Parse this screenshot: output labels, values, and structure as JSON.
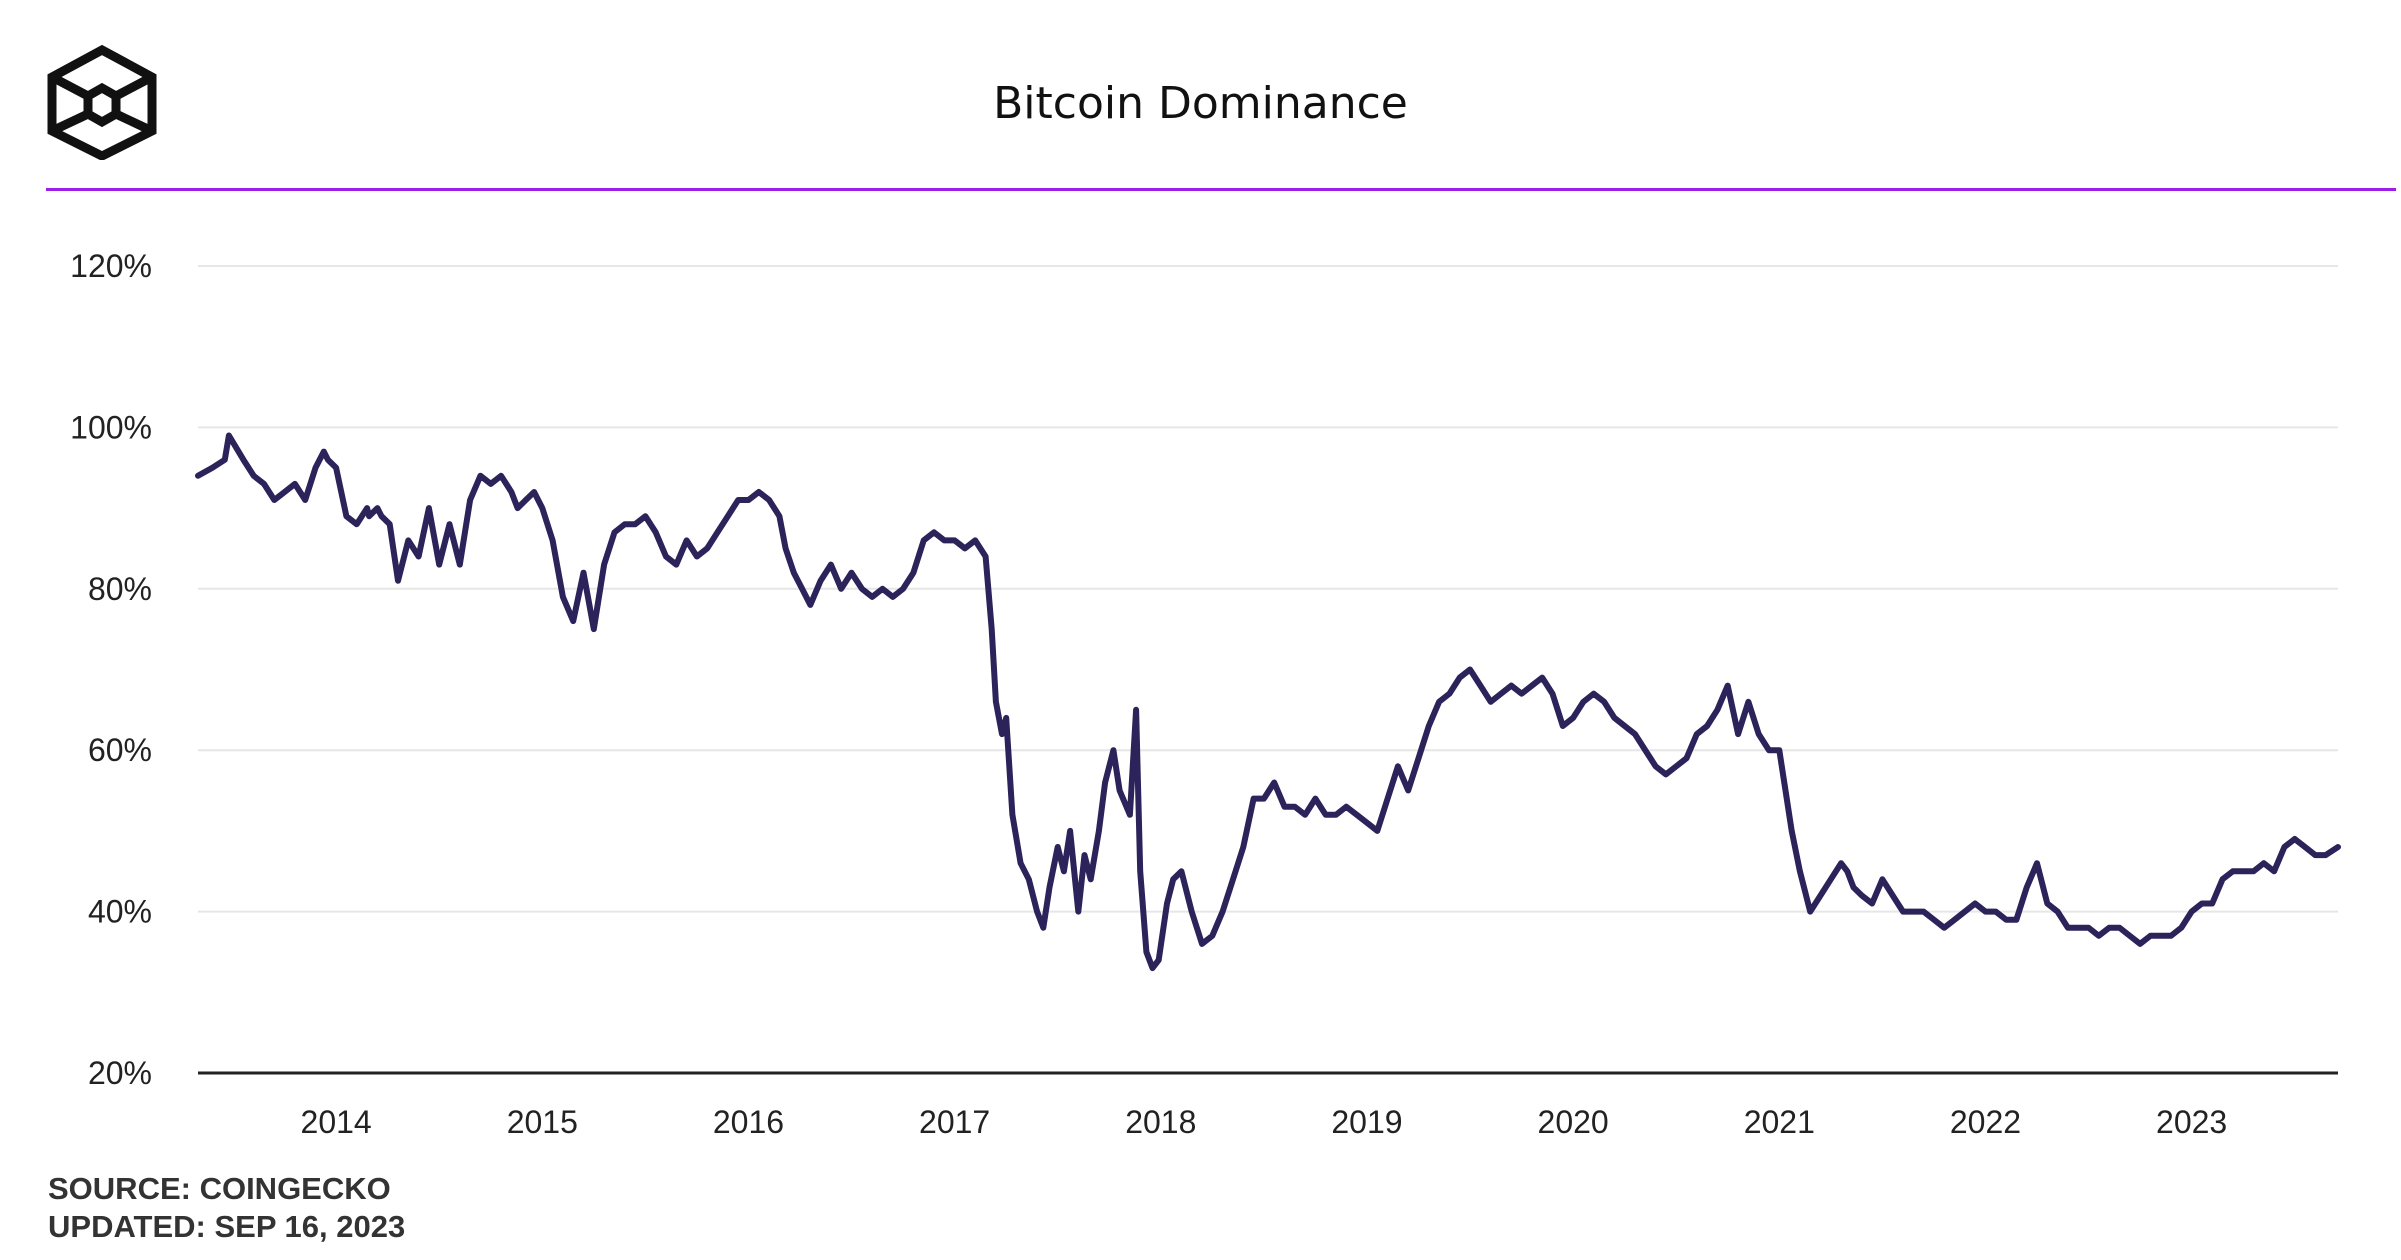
{
  "header": {
    "title": "Bitcoin Dominance",
    "accent_color": "#9b1fe8",
    "logo_icon": "hexagon-cube-logo-icon"
  },
  "footer": {
    "source": "SOURCE: COINGECKO",
    "updated": "UPDATED: SEP 16, 2023"
  },
  "chart_data": {
    "type": "line",
    "title": "Bitcoin Dominance",
    "xlabel": "",
    "ylabel": "",
    "xlim": [
      2013.33,
      2023.71
    ],
    "ylim": [
      20,
      120
    ],
    "y_ticks": [
      20,
      40,
      60,
      80,
      100,
      120
    ],
    "y_tick_labels": [
      "20%",
      "40%",
      "60%",
      "80%",
      "100%",
      "120%"
    ],
    "x_ticks": [
      2014,
      2015,
      2016,
      2017,
      2018,
      2019,
      2020,
      2021,
      2022,
      2023
    ],
    "x_tick_labels": [
      "2014",
      "2015",
      "2016",
      "2017",
      "2018",
      "2019",
      "2020",
      "2021",
      "2022",
      "2023"
    ],
    "grid": true,
    "legend": "none",
    "line_color": "#2b2359",
    "series": [
      {
        "name": "",
        "x": [
          2013.33,
          2013.4,
          2013.46,
          2013.48,
          2013.55,
          2013.6,
          2013.65,
          2013.7,
          2013.75,
          2013.8,
          2013.85,
          2013.9,
          2013.94,
          2013.96,
          2014.0,
          2014.05,
          2014.1,
          2014.15,
          2014.16,
          2014.2,
          2014.22,
          2014.26,
          2014.3,
          2014.35,
          2014.4,
          2014.45,
          2014.5,
          2014.55,
          2014.6,
          2014.65,
          2014.7,
          2014.75,
          2014.8,
          2014.85,
          2014.88,
          2014.92,
          2014.96,
          2015.0,
          2015.05,
          2015.1,
          2015.15,
          2015.2,
          2015.25,
          2015.3,
          2015.35,
          2015.4,
          2015.45,
          2015.5,
          2015.55,
          2015.6,
          2015.65,
          2015.7,
          2015.75,
          2015.8,
          2015.85,
          2015.9,
          2015.95,
          2016.0,
          2016.05,
          2016.1,
          2016.15,
          2016.18,
          2016.22,
          2016.26,
          2016.3,
          2016.35,
          2016.4,
          2016.45,
          2016.5,
          2016.55,
          2016.6,
          2016.65,
          2016.7,
          2016.75,
          2016.8,
          2016.85,
          2016.9,
          2016.95,
          2017.0,
          2017.05,
          2017.1,
          2017.15,
          2017.18,
          2017.2,
          2017.23,
          2017.25,
          2017.28,
          2017.32,
          2017.36,
          2017.4,
          2017.43,
          2017.46,
          2017.5,
          2017.53,
          2017.56,
          2017.6,
          2017.63,
          2017.66,
          2017.7,
          2017.73,
          2017.77,
          2017.8,
          2017.85,
          2017.88,
          2017.9,
          2017.93,
          2017.96,
          2017.99,
          2018.03,
          2018.06,
          2018.1,
          2018.15,
          2018.2,
          2018.25,
          2018.3,
          2018.35,
          2018.4,
          2018.45,
          2018.5,
          2018.55,
          2018.6,
          2018.65,
          2018.7,
          2018.75,
          2018.8,
          2018.85,
          2018.9,
          2018.95,
          2019.0,
          2019.05,
          2019.1,
          2019.15,
          2019.2,
          2019.25,
          2019.3,
          2019.35,
          2019.4,
          2019.45,
          2019.5,
          2019.55,
          2019.6,
          2019.65,
          2019.7,
          2019.75,
          2019.8,
          2019.85,
          2019.9,
          2019.95,
          2020.0,
          2020.05,
          2020.1,
          2020.15,
          2020.2,
          2020.25,
          2020.3,
          2020.35,
          2020.4,
          2020.45,
          2020.5,
          2020.55,
          2020.6,
          2020.65,
          2020.7,
          2020.75,
          2020.8,
          2020.85,
          2020.9,
          2020.95,
          2021.0,
          2021.03,
          2021.06,
          2021.1,
          2021.15,
          2021.2,
          2021.25,
          2021.3,
          2021.33,
          2021.36,
          2021.4,
          2021.45,
          2021.5,
          2021.55,
          2021.6,
          2021.65,
          2021.7,
          2021.75,
          2021.8,
          2021.85,
          2021.9,
          2021.95,
          2022.0,
          2022.05,
          2022.1,
          2022.15,
          2022.2,
          2022.25,
          2022.3,
          2022.35,
          2022.4,
          2022.45,
          2022.5,
          2022.55,
          2022.6,
          2022.65,
          2022.7,
          2022.75,
          2022.8,
          2022.85,
          2022.9,
          2022.95,
          2023.0,
          2023.05,
          2023.1,
          2023.15,
          2023.2,
          2023.25,
          2023.3,
          2023.35,
          2023.4,
          2023.45,
          2023.5,
          2023.55,
          2023.6,
          2023.65,
          2023.71
        ],
        "y": [
          94,
          95,
          96,
          99,
          96,
          94,
          93,
          91,
          92,
          93,
          91,
          95,
          97,
          96,
          95,
          89,
          88,
          90,
          89,
          90,
          89,
          88,
          81,
          86,
          84,
          90,
          83,
          88,
          83,
          91,
          94,
          93,
          94,
          92,
          90,
          91,
          92,
          90,
          86,
          79,
          76,
          82,
          75,
          83,
          87,
          88,
          88,
          89,
          87,
          84,
          83,
          86,
          84,
          85,
          87,
          89,
          91,
          91,
          92,
          91,
          89,
          85,
          82,
          80,
          78,
          81,
          83,
          80,
          82,
          80,
          79,
          80,
          79,
          80,
          82,
          86,
          87,
          86,
          86,
          85,
          86,
          84,
          75,
          66,
          62,
          64,
          52,
          46,
          44,
          40,
          38,
          43,
          48,
          45,
          50,
          40,
          47,
          44,
          50,
          56,
          60,
          55,
          52,
          65,
          45,
          35,
          33,
          34,
          41,
          44,
          45,
          40,
          36,
          37,
          40,
          44,
          48,
          54,
          54,
          56,
          53,
          53,
          52,
          54,
          52,
          52,
          53,
          52,
          51,
          50,
          54,
          58,
          55,
          59,
          63,
          66,
          67,
          69,
          70,
          68,
          66,
          67,
          68,
          67,
          68,
          69,
          67,
          63,
          64,
          66,
          67,
          66,
          64,
          63,
          62,
          60,
          58,
          57,
          58,
          59,
          62,
          63,
          65,
          68,
          62,
          66,
          62,
          60,
          60,
          55,
          50,
          45,
          40,
          42,
          44,
          46,
          45,
          43,
          42,
          41,
          44,
          42,
          40,
          40,
          40,
          39,
          38,
          39,
          40,
          41,
          40,
          40,
          39,
          39,
          43,
          46,
          41,
          40,
          38,
          38,
          38,
          37,
          38,
          38,
          37,
          36,
          37,
          37,
          37,
          38,
          40,
          41,
          41,
          44,
          45,
          45,
          45,
          46,
          45,
          48,
          49,
          48,
          47,
          47,
          48
        ]
      }
    ]
  }
}
